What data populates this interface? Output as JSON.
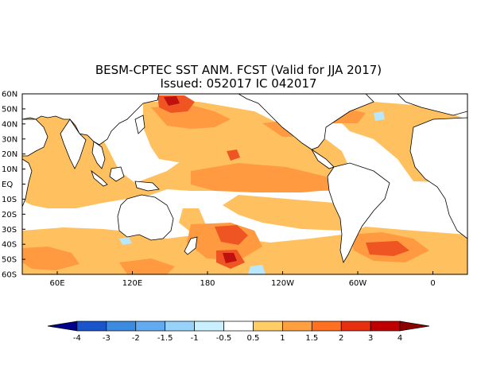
{
  "title_line1": "BESM-CPTEC SST ANM. FCST  (Valid for JJA 2017)",
  "title_line2": "Issued:  052017 IC 042017",
  "lat_labels": [
    "60N",
    "50N",
    "40N",
    "30N",
    "20N",
    "10N",
    "EQ",
    "10S",
    "20S",
    "30S",
    "40S",
    "50S",
    "60S"
  ],
  "lon_labels": [
    "60E",
    "120E",
    "180",
    "120W",
    "60W",
    "0"
  ],
  "colorbar": {
    "ticks": [
      "-4",
      "-3",
      "-2",
      "-1.5",
      "-1",
      "-0.5",
      "0.5",
      "1",
      "1.5",
      "2",
      "3",
      "4"
    ],
    "colors": [
      "#00008b",
      "#1a55cc",
      "#3c8be0",
      "#64aaf0",
      "#96d2fa",
      "#c8f0ff",
      "#ffffff",
      "#ffcc66",
      "#ffa040",
      "#ff7020",
      "#e83010",
      "#c00000",
      "#8b0000"
    ]
  },
  "colors": {
    "land": "#ffffff",
    "warm_light": "#ffc060",
    "warm_mid": "#ff9a40",
    "warm_strong": "#ee5522",
    "warm_max": "#c01010",
    "cool_light": "#b8e8ff",
    "coast": "#000000"
  }
}
